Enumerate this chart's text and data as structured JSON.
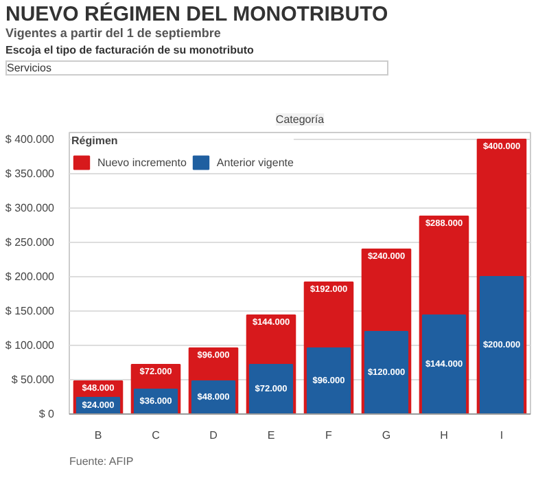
{
  "chart_data": {
    "type": "bar",
    "title": "NUEVO RÉGIMEN DEL MONOTRIBUTO",
    "subtitle": "Vigentes a partir del 1 de septiembre",
    "xlabel": "Categoría",
    "legend_title": "Régimen",
    "legend": "top left",
    "annotations": [
      "Escoja el tipo de facturación de su monotributo",
      "Servicios",
      "Fuente: AFIP"
    ],
    "categories": [
      "B",
      "C",
      "D",
      "E",
      "F",
      "G",
      "H",
      "I"
    ],
    "series": [
      {
        "name": "Nuevo incremento",
        "color": "#d7191c",
        "values": [
          48000,
          72000,
          96000,
          144000,
          192000,
          240000,
          288000,
          400000
        ],
        "value_labels": [
          "$48.000",
          "$72.000",
          "$96.000",
          "$144.000",
          "$192.000",
          "$240.000",
          "$288.000",
          "$400.000"
        ]
      },
      {
        "name": "Anterior vigente",
        "color": "#1f5fa0",
        "values": [
          24000,
          36000,
          48000,
          72000,
          96000,
          120000,
          144000,
          200000
        ],
        "value_labels": [
          "$24.000",
          "$36.000",
          "$48.000",
          "$72.000",
          "$96.000",
          "$120.000",
          "$144.000",
          "$200.000"
        ]
      }
    ],
    "ylim": [
      0,
      410000
    ],
    "yticks": [
      {
        "value": 0,
        "label": "$ 0"
      },
      {
        "value": 50000,
        "label": "$ 50.000"
      },
      {
        "value": 100000,
        "label": "$ 100.000"
      },
      {
        "value": 150000,
        "label": "$ 150.000"
      },
      {
        "value": 200000,
        "label": "$ 200.000"
      },
      {
        "value": 250000,
        "label": "$ 250.000"
      },
      {
        "value": 300000,
        "label": "$ 300.000"
      },
      {
        "value": 350000,
        "label": "$ 350.000"
      },
      {
        "value": 400000,
        "label": "$ 400.000"
      }
    ],
    "grid": "y"
  }
}
